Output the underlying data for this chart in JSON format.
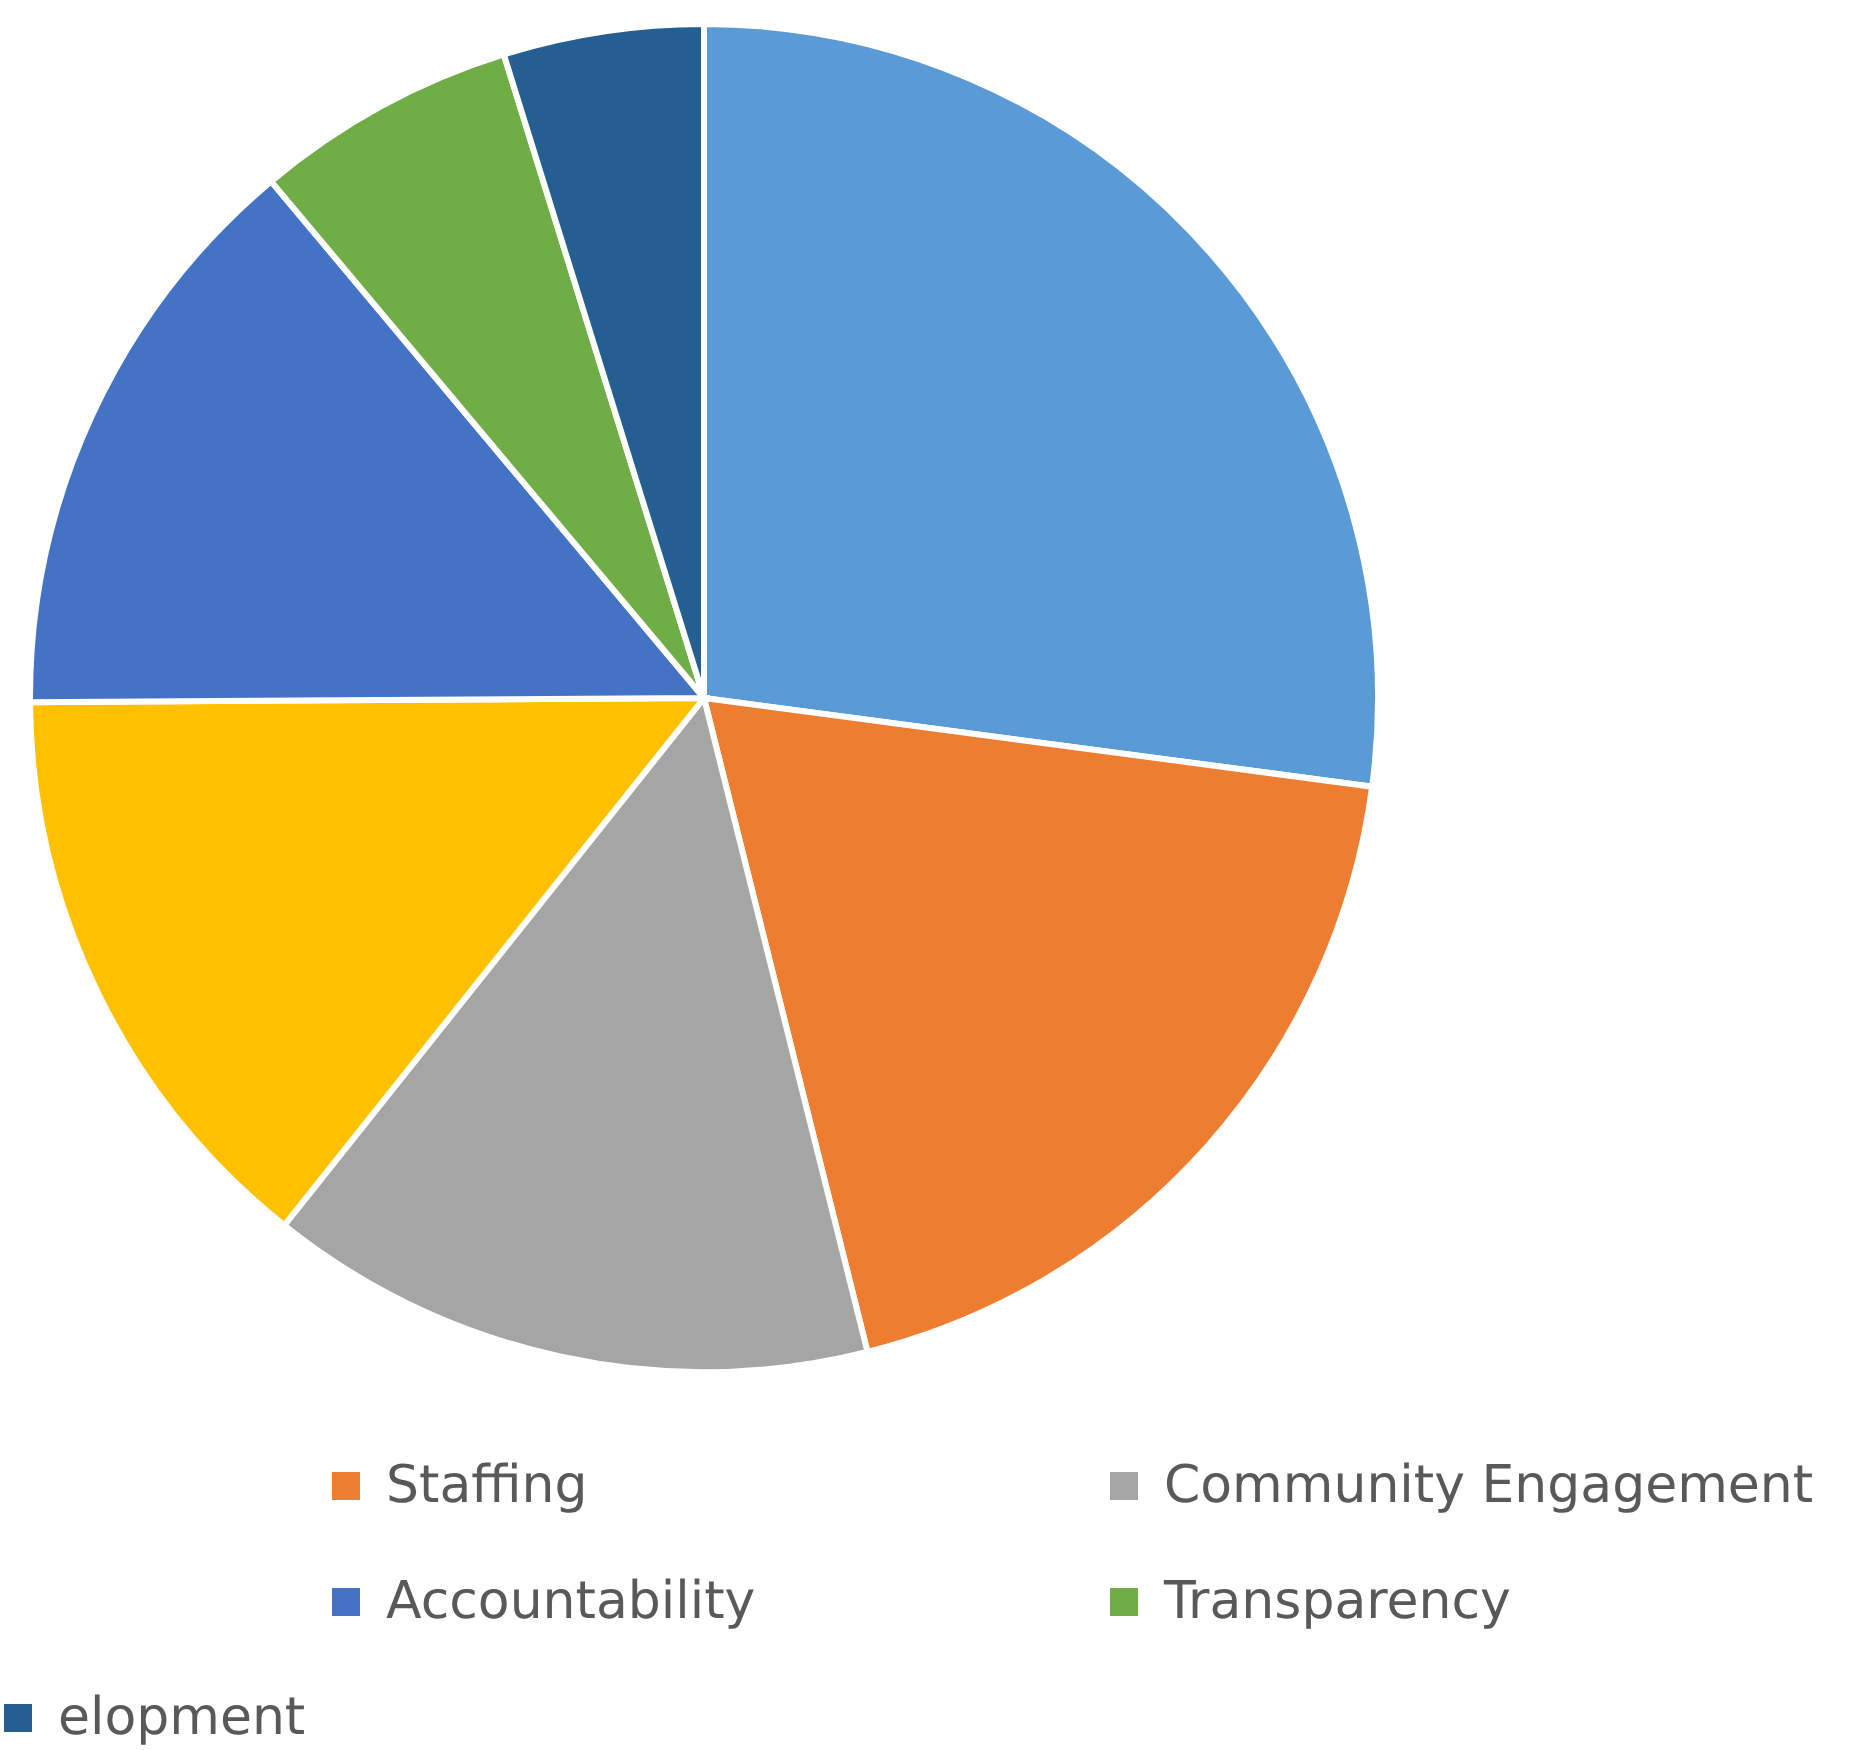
{
  "chart_data": {
    "type": "pie",
    "categories": [
      null,
      "Staffing",
      "Community Engagement",
      null,
      "Accountability",
      "Transparency",
      "elopment"
    ],
    "values": [
      27.1,
      19.0,
      14.6,
      14.2,
      14.0,
      6.3,
      4.8
    ],
    "colors": [
      "#5b9bd5",
      "#ed7d31",
      "#a5a5a5",
      "#ffc000",
      "#4472c4",
      "#70ad47",
      "#255e91"
    ],
    "legend": "bottom"
  }
}
